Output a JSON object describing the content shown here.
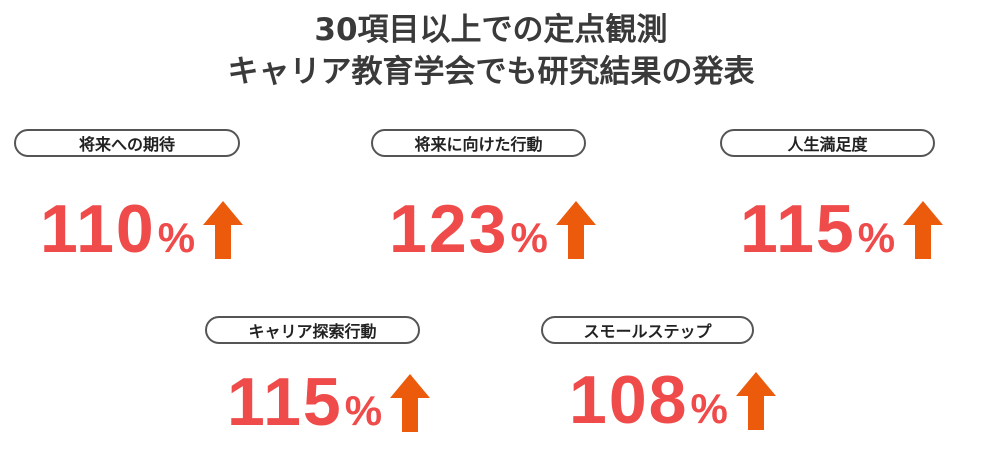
{
  "title": {
    "line1": "30項目以上での定点観測",
    "line2": "キャリア教育学会でも研究結果の発表"
  },
  "colors": {
    "value": "#ef4b4b",
    "arrow": "#ec5a0c",
    "pill_border": "#555555",
    "title": "#3a3a3a"
  },
  "metrics": [
    {
      "label": "将来への期待",
      "value": "110",
      "unit": "%",
      "icon": "up-arrow-icon"
    },
    {
      "label": "将来に向けた行動",
      "value": "123",
      "unit": "%",
      "icon": "up-arrow-icon"
    },
    {
      "label": "人生満足度",
      "value": "115",
      "unit": "%",
      "icon": "up-arrow-icon"
    },
    {
      "label": "キャリア探索行動",
      "value": "115",
      "unit": "%",
      "icon": "up-arrow-icon"
    },
    {
      "label": "スモールステップ",
      "value": "108",
      "unit": "%",
      "icon": "up-arrow-icon"
    }
  ]
}
